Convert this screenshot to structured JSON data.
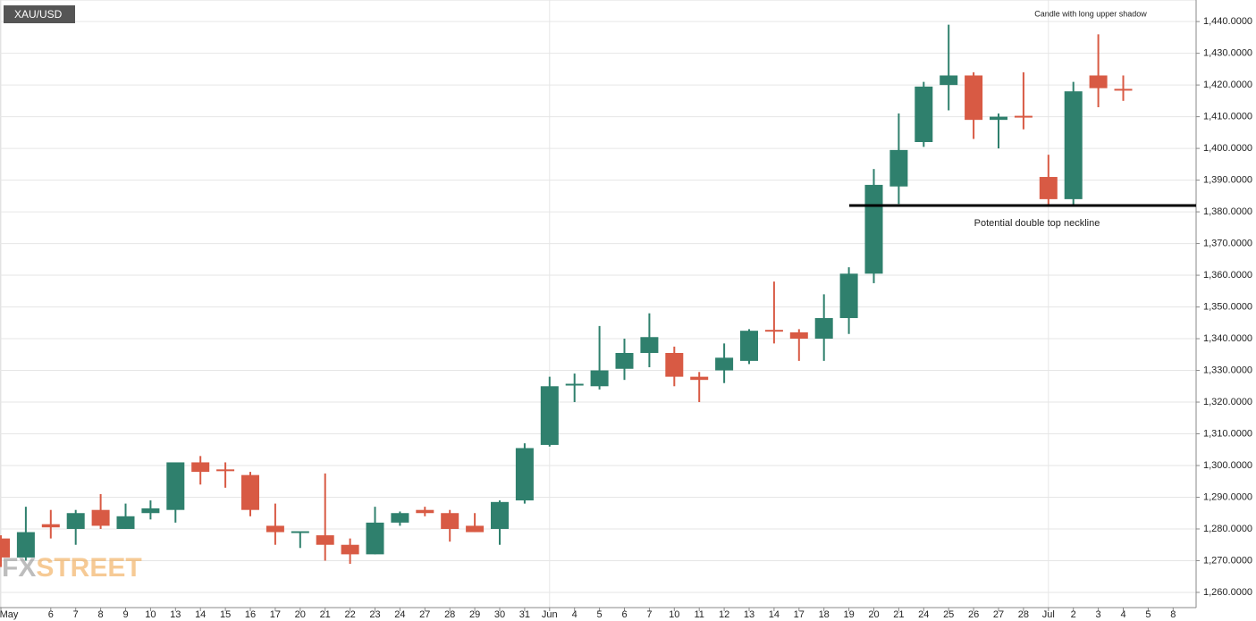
{
  "chart_data": {
    "type": "candlestick",
    "title": "XAU/USD",
    "annotations": [
      "Candle with long upper shadow",
      "Potential double top neckline"
    ],
    "watermark": {
      "prefix": "FX",
      "suffix": "STREET"
    },
    "categories": [
      "May",
      null,
      "6",
      "7",
      "8",
      "9",
      "10",
      "13",
      "14",
      "15",
      "16",
      "17",
      "20",
      "21",
      "22",
      "23",
      "24",
      "27",
      "28",
      "29",
      "30",
      "31",
      "Jun",
      "4",
      "5",
      "6",
      "7",
      "10",
      "11",
      "12",
      "13",
      "14",
      "17",
      "18",
      "19",
      "20",
      "21",
      "24",
      "25",
      "26",
      "27",
      "28",
      "Jul",
      "2",
      "3",
      "4",
      "5",
      "8"
    ],
    "open": [
      1277,
      1271,
      1281.5,
      1280,
      1286,
      1280,
      1285,
      1286,
      1301,
      1298.5,
      1297,
      1281,
      1278.5,
      1278,
      1275,
      1272,
      1282,
      1286,
      1285,
      1281,
      1280,
      1289,
      1306.5,
      1325,
      1325,
      1330.5,
      1335.5,
      1335.5,
      1328,
      1330,
      1333,
      1342.5,
      1342,
      1340,
      1346.5,
      1360.5,
      1388,
      1402,
      1420,
      1423,
      1409,
      1410,
      1391,
      1384,
      1423,
      1418.5,
      null,
      null
    ],
    "high": [
      1278,
      1287,
      1286,
      1286,
      1291,
      1288,
      1289,
      1301,
      1303,
      1301,
      1298,
      1288,
      1279,
      1297.5,
      1277,
      1287,
      1285.5,
      1287,
      1286,
      1285,
      1289,
      1307,
      1328,
      1329,
      1344,
      1340,
      1348,
      1337.5,
      1329.5,
      1338.5,
      1343,
      1358,
      1343,
      1354,
      1362.5,
      1393.5,
      1411,
      1421,
      1439,
      1424,
      1411,
      1424,
      1398,
      1421,
      1436,
      1423,
      null,
      null
    ],
    "low": [
      1268,
      1270,
      1277,
      1275,
      1280,
      1280,
      1283,
      1282,
      1294,
      1293,
      1284,
      1275,
      1274,
      1270,
      1269,
      1272,
      1281,
      1284,
      1276,
      1279,
      1275,
      1288,
      1306,
      1320,
      1324,
      1327,
      1331,
      1325,
      1320,
      1326,
      1332,
      1338.5,
      1333,
      1333,
      1341.5,
      1357.5,
      1382.5,
      1400.5,
      1412,
      1403,
      1400,
      1406,
      1382,
      1382,
      1413,
      1415,
      null,
      null
    ],
    "close": [
      1271,
      1279,
      1280.5,
      1285,
      1281,
      1284,
      1286.5,
      1301,
      1298,
      1298,
      1286,
      1279,
      1279,
      1275,
      1272,
      1282,
      1285,
      1285,
      1280,
      1279,
      1288.5,
      1305.5,
      1325,
      1325.5,
      1330,
      1335.5,
      1340.5,
      1328,
      1327,
      1334,
      1342.5,
      1342,
      1340,
      1346.5,
      1360.5,
      1388.5,
      1399.5,
      1419.5,
      1423,
      1409,
      1410,
      1409.5,
      1384,
      1418,
      1419,
      1418,
      null,
      null
    ],
    "up_color": "#2f806d",
    "down_color": "#d85a44",
    "hline": 1382,
    "ylim": [
      1255.2,
      1446.8
    ],
    "yticks": [
      {
        "value": 1260,
        "label": "1,260.0000"
      },
      {
        "value": 1270,
        "label": "1,270.0000"
      },
      {
        "value": 1280,
        "label": "1,280.0000"
      },
      {
        "value": 1290,
        "label": "1,290.0000"
      },
      {
        "value": 1300,
        "label": "1,300.0000"
      },
      {
        "value": 1310,
        "label": "1,310.0000"
      },
      {
        "value": 1320,
        "label": "1,320.0000"
      },
      {
        "value": 1330,
        "label": "1,330.0000"
      },
      {
        "value": 1340,
        "label": "1,340.0000"
      },
      {
        "value": 1350,
        "label": "1,350.0000"
      },
      {
        "value": 1360,
        "label": "1,360.0000"
      },
      {
        "value": 1370,
        "label": "1,370.0000"
      },
      {
        "value": 1380,
        "label": "1,380.0000"
      },
      {
        "value": 1390,
        "label": "1,390.0000"
      },
      {
        "value": 1400,
        "label": "1,400.0000"
      },
      {
        "value": 1410,
        "label": "1,410.0000"
      },
      {
        "value": 1420,
        "label": "1,420.0000"
      },
      {
        "value": 1430,
        "label": "1,430.0000"
      },
      {
        "value": 1440,
        "label": "1,440.0000"
      }
    ],
    "grid": true
  }
}
